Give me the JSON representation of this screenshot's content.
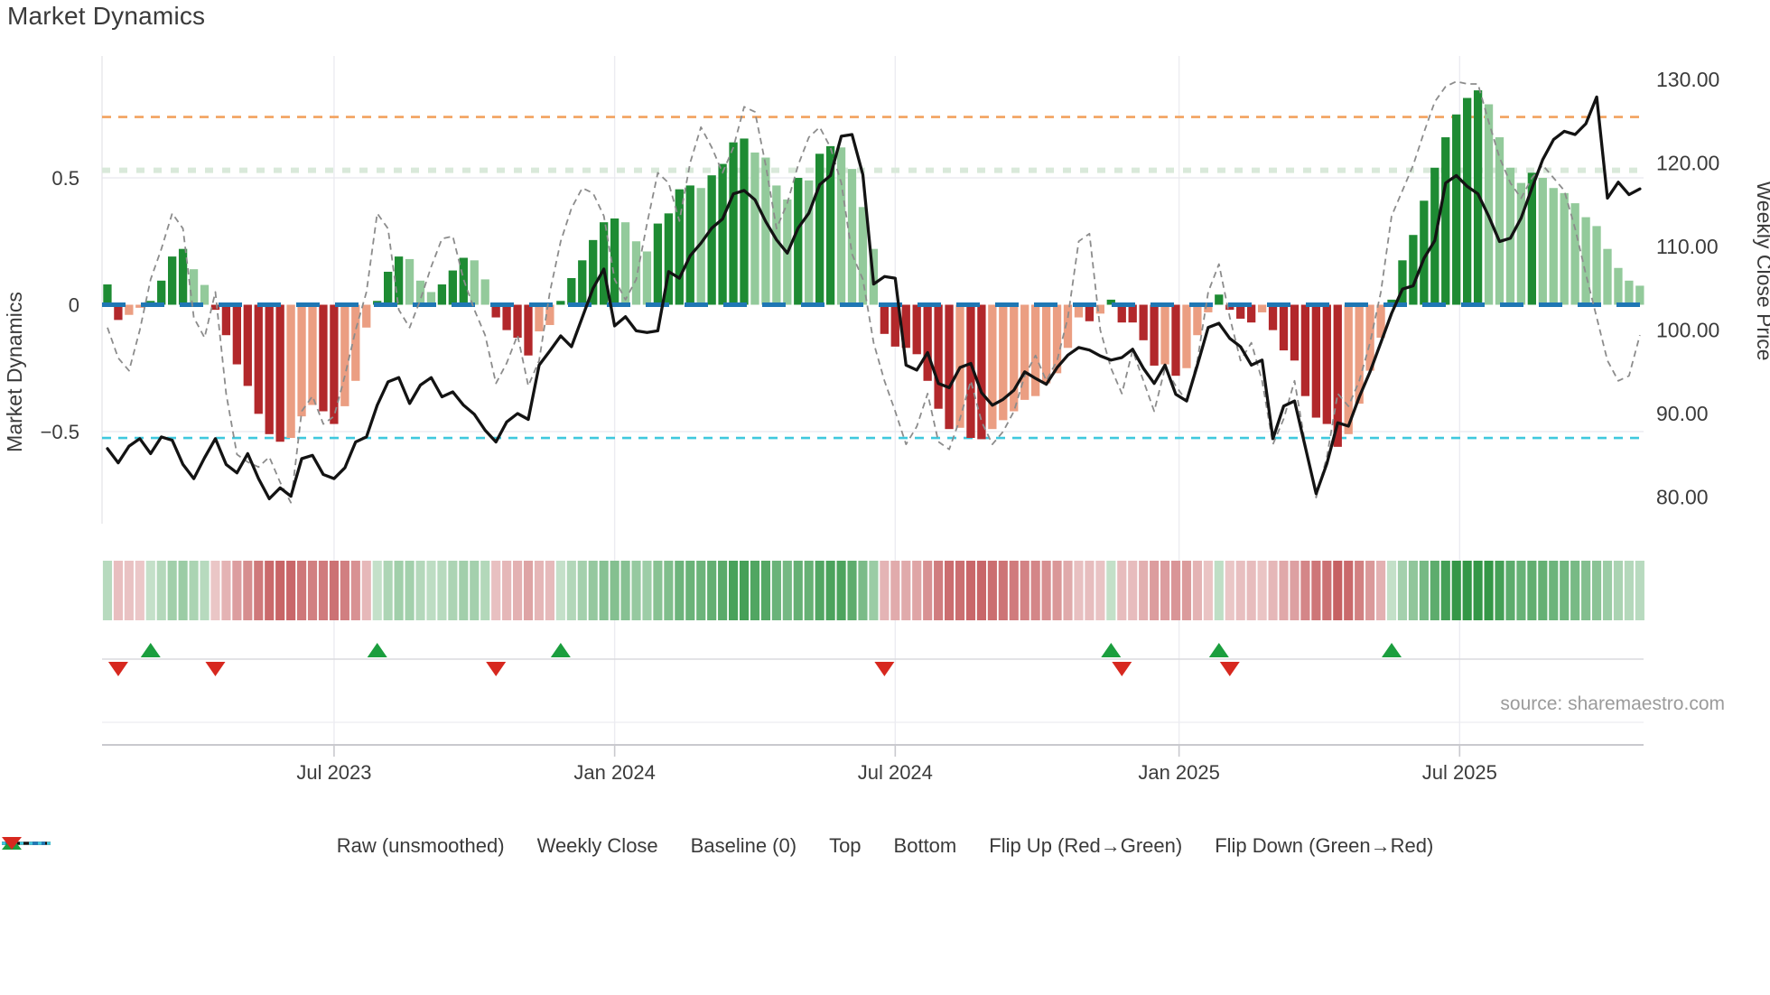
{
  "title": "Market Dynamics",
  "source_credit": "source: sharemaestro.com",
  "axes": {
    "left": {
      "title": "Market Dynamics",
      "ticks": [
        "0.5",
        "0",
        "−0.5"
      ],
      "tick_values": [
        0.5,
        0,
        -0.5
      ]
    },
    "right": {
      "title": "Weekly Close Price",
      "ticks": [
        "130.00",
        "120.00",
        "110.00",
        "100.00",
        "90.00",
        "80.00"
      ],
      "tick_values": [
        130,
        120,
        110,
        100,
        90,
        80
      ]
    },
    "x": {
      "ticks": [
        "Jul 2023",
        "Jan 2024",
        "Jul 2024",
        "Jan 2025",
        "Jul 2025"
      ],
      "tick_weeks": [
        21,
        47,
        73,
        99.3,
        125.3
      ]
    }
  },
  "legend": [
    {
      "name": "raw-unsmoothed",
      "label": "Raw (unsmoothed)",
      "swatch": "dash-gray"
    },
    {
      "name": "weekly-close",
      "label": "Weekly Close",
      "swatch": "line-black"
    },
    {
      "name": "baseline",
      "label": "Baseline (0)",
      "swatch": "dash-blue"
    },
    {
      "name": "top",
      "label": "Top",
      "swatch": "dot-orange"
    },
    {
      "name": "bottom",
      "label": "Bottom",
      "swatch": "dot-cyan"
    },
    {
      "name": "flip-up",
      "label": "Flip Up (Red→Green)",
      "swatch": "tri-up"
    },
    {
      "name": "flip-down",
      "label": "Flip Down (Green→Red)",
      "swatch": "tri-down"
    }
  ],
  "colors": {
    "bar_dark_green": "#1e8b33",
    "bar_light_green": "#93ca9b",
    "bar_dark_red": "#b2282b",
    "bar_light_red": "#eb9e82",
    "baseline_blue": "#1f77b4",
    "top_orange": "#f2a25e",
    "bottom_cyan": "#3fc8de",
    "faint_upper_green": "#d9e9da",
    "raw_gray": "#8c8c8c",
    "close_black": "#131313",
    "flip_green": "#1b9e3e",
    "flip_red": "#d7281f",
    "grid": "#ececf1",
    "axis_line": "#c9c9ce",
    "flip_grid": "#dadade",
    "text": "#3b3b3b",
    "heat_green_base": "#1d8b33",
    "heat_red_base": "#b2282b"
  },
  "chart_data": {
    "type": "bar",
    "combo": [
      "bar (left axis oscillator)",
      "dashed line (left axis raw)",
      "solid line (right axis price)",
      "heatmap strip",
      "flip markers"
    ],
    "x_unit": "week",
    "weeks": 143,
    "x_tick_labels": [
      "Jul 2023",
      "Jan 2024",
      "Jul 2024",
      "Jan 2025",
      "Jul 2025"
    ],
    "x_tick_weeks": [
      21,
      47,
      73,
      99.3,
      125.3
    ],
    "title": "Market Dynamics",
    "ylabel_left": "Market Dynamics",
    "ylabel_right": "Weekly Close Price",
    "left_ylim": [
      -0.86,
      0.99
    ],
    "right_ylim": [
      76.8,
      133.0
    ],
    "legend_position": "bottom",
    "grid": "light vertical gridlines at half-year ticks; light horizontal at ±0.5",
    "thresholds": {
      "baseline": 0,
      "top": 0.74,
      "bottom": -0.525,
      "faint_upper": 0.53
    },
    "flip_up_weeks": [
      4,
      25,
      42,
      93,
      103,
      119
    ],
    "flip_down_weeks": [
      1,
      10,
      36,
      72,
      94,
      104
    ],
    "heatmap": "weekly strip colored by oscillator sign/magnitude (same values as bars)",
    "bar_shading_rule": "dark shade while |value| grows vs prior week, light shade while it fades",
    "series": [
      {
        "name": "Market Dynamics (smoothed oscillator bars)",
        "type": "bar",
        "axis": "left",
        "values": [
          0.08,
          -0.06,
          -0.04,
          -0.012,
          0.015,
          0.095,
          0.19,
          0.22,
          0.14,
          0.078,
          -0.02,
          -0.12,
          -0.235,
          -0.32,
          -0.43,
          -0.51,
          -0.54,
          -0.525,
          -0.44,
          -0.395,
          -0.42,
          -0.47,
          -0.4,
          -0.3,
          -0.09,
          0.015,
          0.13,
          0.19,
          0.18,
          0.095,
          0.05,
          0.08,
          0.135,
          0.185,
          0.175,
          0.1,
          -0.05,
          -0.1,
          -0.13,
          -0.2,
          -0.105,
          -0.08,
          0.015,
          0.105,
          0.175,
          0.255,
          0.325,
          0.34,
          0.325,
          0.25,
          0.21,
          0.32,
          0.36,
          0.455,
          0.47,
          0.46,
          0.51,
          0.555,
          0.64,
          0.655,
          0.6,
          0.58,
          0.47,
          0.415,
          0.5,
          0.49,
          0.595,
          0.625,
          0.62,
          0.535,
          0.385,
          0.22,
          -0.115,
          -0.165,
          -0.17,
          -0.195,
          -0.3,
          -0.41,
          -0.49,
          -0.485,
          -0.525,
          -0.53,
          -0.49,
          -0.455,
          -0.42,
          -0.375,
          -0.36,
          -0.31,
          -0.27,
          -0.17,
          -0.05,
          -0.065,
          -0.035,
          0.02,
          -0.07,
          -0.07,
          -0.14,
          -0.24,
          -0.235,
          -0.28,
          -0.25,
          -0.12,
          -0.03,
          0.04,
          -0.02,
          -0.055,
          -0.07,
          -0.03,
          -0.1,
          -0.18,
          -0.22,
          -0.36,
          -0.445,
          -0.47,
          -0.56,
          -0.51,
          -0.39,
          -0.26,
          -0.13,
          0.02,
          0.175,
          0.275,
          0.41,
          0.54,
          0.66,
          0.75,
          0.815,
          0.845,
          0.79,
          0.66,
          0.54,
          0.48,
          0.52,
          0.5,
          0.46,
          0.44,
          0.4,
          0.345,
          0.31,
          0.22,
          0.145,
          0.095,
          0.075
        ]
      },
      {
        "name": "Raw (unsmoothed)",
        "type": "line",
        "style": "dashed",
        "axis": "left",
        "values": [
          -0.09,
          -0.21,
          -0.26,
          -0.1,
          0.1,
          0.22,
          0.36,
          0.3,
          -0.05,
          -0.13,
          0.05,
          -0.35,
          -0.59,
          -0.62,
          -0.64,
          -0.6,
          -0.7,
          -0.78,
          -0.42,
          -0.36,
          -0.47,
          -0.44,
          -0.28,
          -0.1,
          0.05,
          0.36,
          0.3,
          -0.02,
          -0.09,
          0.02,
          0.15,
          0.26,
          0.27,
          0.1,
          -0.02,
          -0.12,
          -0.31,
          -0.23,
          -0.12,
          -0.32,
          -0.22,
          0.05,
          0.25,
          0.38,
          0.46,
          0.44,
          0.35,
          0.1,
          0.02,
          0.1,
          0.32,
          0.52,
          0.48,
          0.33,
          0.56,
          0.7,
          0.62,
          0.52,
          0.62,
          0.78,
          0.76,
          0.55,
          0.3,
          0.4,
          0.55,
          0.66,
          0.7,
          0.62,
          0.48,
          0.2,
          0.1,
          -0.15,
          -0.3,
          -0.42,
          -0.55,
          -0.48,
          -0.35,
          -0.54,
          -0.57,
          -0.45,
          -0.3,
          -0.46,
          -0.55,
          -0.5,
          -0.42,
          -0.28,
          -0.2,
          -0.3,
          -0.22,
          -0.05,
          0.25,
          0.28,
          -0.1,
          -0.25,
          -0.35,
          -0.18,
          -0.3,
          -0.42,
          -0.25,
          -0.32,
          -0.38,
          -0.22,
          0.05,
          0.16,
          -0.05,
          -0.22,
          -0.15,
          -0.3,
          -0.55,
          -0.45,
          -0.3,
          -0.55,
          -0.76,
          -0.6,
          -0.35,
          -0.4,
          -0.3,
          -0.15,
          0.05,
          0.35,
          0.45,
          0.55,
          0.68,
          0.8,
          0.86,
          0.88,
          0.87,
          0.87,
          0.72,
          0.58,
          0.48,
          0.42,
          0.5,
          0.55,
          0.5,
          0.45,
          0.3,
          0.12,
          -0.05,
          -0.22,
          -0.3,
          -0.28,
          -0.12
        ]
      },
      {
        "name": "Weekly Close",
        "type": "line",
        "style": "solid",
        "axis": "right",
        "values": [
          85.8,
          84.1,
          86.1,
          87.0,
          85.2,
          87.2,
          86.8,
          83.9,
          82.2,
          84.7,
          87.0,
          83.9,
          82.9,
          85.2,
          82.2,
          79.8,
          81.1,
          80.1,
          84.6,
          85.0,
          82.7,
          82.2,
          83.5,
          86.6,
          87.2,
          91.0,
          93.8,
          94.3,
          91.2,
          93.4,
          94.3,
          92.0,
          92.6,
          91.0,
          89.9,
          88.0,
          86.6,
          89.0,
          90.0,
          89.3,
          95.8,
          97.5,
          99.3,
          98.0,
          101.5,
          105.0,
          107.3,
          100.5,
          101.6,
          99.9,
          99.7,
          99.9,
          107.0,
          106.2,
          108.9,
          110.4,
          112.2,
          113.3,
          116.3,
          116.7,
          115.6,
          113.0,
          110.8,
          109.2,
          112.2,
          114.0,
          117.4,
          118.5,
          123.2,
          123.4,
          118.6,
          105.5,
          106.4,
          106.2,
          95.8,
          95.2,
          97.3,
          93.6,
          93.1,
          95.5,
          96.0,
          92.5,
          91.0,
          91.7,
          92.8,
          95.0,
          94.2,
          93.5,
          95.5,
          97.0,
          97.9,
          97.6,
          96.9,
          96.4,
          96.7,
          97.7,
          95.4,
          93.6,
          95.8,
          92.3,
          91.5,
          95.8,
          100.3,
          100.8,
          99.0,
          98.0,
          95.8,
          96.4,
          87.0,
          90.9,
          91.5,
          86.0,
          80.4,
          84.0,
          88.9,
          88.5,
          92.0,
          95.0,
          98.5,
          102.0,
          104.9,
          105.3,
          108.6,
          110.7,
          117.6,
          118.5,
          117.2,
          116.3,
          113.6,
          110.6,
          111.0,
          113.4,
          117.0,
          120.4,
          122.8,
          123.8,
          123.4,
          124.7,
          127.9,
          115.8,
          117.7,
          116.2,
          116.9
        ]
      }
    ]
  }
}
